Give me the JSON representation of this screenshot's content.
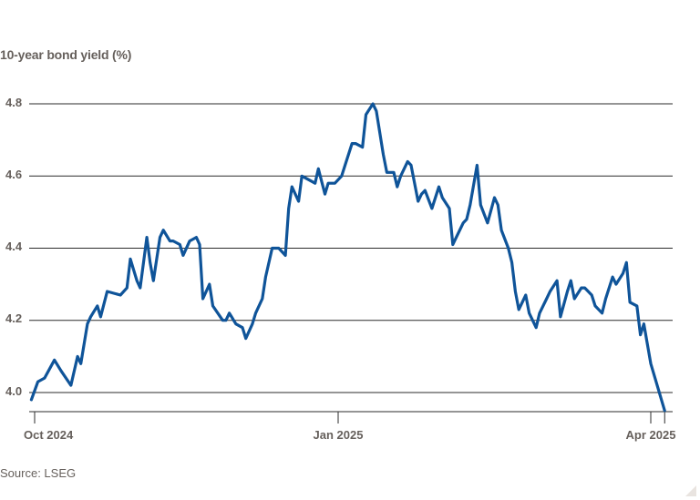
{
  "chart_data": {
    "type": "line",
    "title": "",
    "ylabel": "10-year bond yield (%)",
    "xlabel": "",
    "source": "Source: LSEG",
    "ylim": [
      3.946,
      4.81
    ],
    "yticks": [
      "4.8",
      "4.6",
      "4.4",
      "4.2",
      "4.0"
    ],
    "ytick_values": [
      4.8,
      4.6,
      4.4,
      4.2,
      4.0
    ],
    "xticks": [
      "Oct 2024",
      "Jan 2025",
      "Apr 2025"
    ],
    "xtick_dates": [
      "2024-10-01",
      "2025-01-01",
      "2025-04-01"
    ],
    "grid": true,
    "legend": null,
    "series": [
      {
        "name": "10-year bond yield",
        "color": "#0f5499",
        "points": [
          [
            "2024-09-30",
            3.98
          ],
          [
            "2024-10-02",
            4.03
          ],
          [
            "2024-10-04",
            4.04
          ],
          [
            "2024-10-07",
            4.09
          ],
          [
            "2024-10-09",
            4.06
          ],
          [
            "2024-10-12",
            4.02
          ],
          [
            "2024-10-14",
            4.1
          ],
          [
            "2024-10-15",
            4.08
          ],
          [
            "2024-10-17",
            4.19
          ],
          [
            "2024-10-18",
            4.21
          ],
          [
            "2024-10-20",
            4.24
          ],
          [
            "2024-10-21",
            4.21
          ],
          [
            "2024-10-23",
            4.28
          ],
          [
            "2024-10-27",
            4.27
          ],
          [
            "2024-10-29",
            4.29
          ],
          [
            "2024-10-30",
            4.37
          ],
          [
            "2024-11-01",
            4.31
          ],
          [
            "2024-11-02",
            4.29
          ],
          [
            "2024-11-04",
            4.43
          ],
          [
            "2024-11-05",
            4.36
          ],
          [
            "2024-11-06",
            4.31
          ],
          [
            "2024-11-08",
            4.43
          ],
          [
            "2024-11-09",
            4.45
          ],
          [
            "2024-11-11",
            4.42
          ],
          [
            "2024-11-12",
            4.42
          ],
          [
            "2024-11-14",
            4.41
          ],
          [
            "2024-11-15",
            4.38
          ],
          [
            "2024-11-17",
            4.42
          ],
          [
            "2024-11-19",
            4.43
          ],
          [
            "2024-11-20",
            4.41
          ],
          [
            "2024-11-21",
            4.26
          ],
          [
            "2024-11-23",
            4.3
          ],
          [
            "2024-11-24",
            4.24
          ],
          [
            "2024-11-27",
            4.2
          ],
          [
            "2024-11-28",
            4.2
          ],
          [
            "2024-11-29",
            4.22
          ],
          [
            "2024-12-01",
            4.19
          ],
          [
            "2024-12-03",
            4.18
          ],
          [
            "2024-12-04",
            4.15
          ],
          [
            "2024-12-06",
            4.19
          ],
          [
            "2024-12-07",
            4.22
          ],
          [
            "2024-12-09",
            4.26
          ],
          [
            "2024-12-10",
            4.32
          ],
          [
            "2024-12-12",
            4.4
          ],
          [
            "2024-12-14",
            4.4
          ],
          [
            "2024-12-16",
            4.38
          ],
          [
            "2024-12-17",
            4.51
          ],
          [
            "2024-12-18",
            4.57
          ],
          [
            "2024-12-20",
            4.53
          ],
          [
            "2024-12-21",
            4.6
          ],
          [
            "2024-12-23",
            4.59
          ],
          [
            "2024-12-25",
            4.58
          ],
          [
            "2024-12-26",
            4.62
          ],
          [
            "2024-12-28",
            4.55
          ],
          [
            "2024-12-29",
            4.58
          ],
          [
            "2024-12-31",
            4.58
          ],
          [
            "2025-01-02",
            4.6
          ],
          [
            "2025-01-03",
            4.63
          ],
          [
            "2025-01-05",
            4.69
          ],
          [
            "2025-01-06",
            4.69
          ],
          [
            "2025-01-08",
            4.68
          ],
          [
            "2025-01-09",
            4.77
          ],
          [
            "2025-01-11",
            4.8
          ],
          [
            "2025-01-12",
            4.78
          ],
          [
            "2025-01-14",
            4.66
          ],
          [
            "2025-01-15",
            4.61
          ],
          [
            "2025-01-17",
            4.61
          ],
          [
            "2025-01-18",
            4.57
          ],
          [
            "2025-01-19",
            4.6
          ],
          [
            "2025-01-21",
            4.64
          ],
          [
            "2025-01-22",
            4.63
          ],
          [
            "2025-01-24",
            4.53
          ],
          [
            "2025-01-25",
            4.55
          ],
          [
            "2025-01-26",
            4.56
          ],
          [
            "2025-01-28",
            4.51
          ],
          [
            "2025-01-30",
            4.57
          ],
          [
            "2025-01-31",
            4.54
          ],
          [
            "2025-02-02",
            4.51
          ],
          [
            "2025-02-03",
            4.41
          ],
          [
            "2025-02-04",
            4.43
          ],
          [
            "2025-02-06",
            4.47
          ],
          [
            "2025-02-07",
            4.48
          ],
          [
            "2025-02-08",
            4.52
          ],
          [
            "2025-02-10",
            4.63
          ],
          [
            "2025-02-11",
            4.52
          ],
          [
            "2025-02-13",
            4.47
          ],
          [
            "2025-02-15",
            4.54
          ],
          [
            "2025-02-16",
            4.52
          ],
          [
            "2025-02-17",
            4.45
          ],
          [
            "2025-02-19",
            4.4
          ],
          [
            "2025-02-20",
            4.36
          ],
          [
            "2025-02-21",
            4.28
          ],
          [
            "2025-02-22",
            4.23
          ],
          [
            "2025-02-24",
            4.27
          ],
          [
            "2025-02-25",
            4.22
          ],
          [
            "2025-02-27",
            4.18
          ],
          [
            "2025-02-28",
            4.22
          ],
          [
            "2025-03-02",
            4.26
          ],
          [
            "2025-03-03",
            4.28
          ],
          [
            "2025-03-05",
            4.31
          ],
          [
            "2025-03-06",
            4.21
          ],
          [
            "2025-03-08",
            4.28
          ],
          [
            "2025-03-09",
            4.31
          ],
          [
            "2025-03-10",
            4.26
          ],
          [
            "2025-03-12",
            4.29
          ],
          [
            "2025-03-13",
            4.29
          ],
          [
            "2025-03-15",
            4.27
          ],
          [
            "2025-03-16",
            4.24
          ],
          [
            "2025-03-18",
            4.22
          ],
          [
            "2025-03-19",
            4.26
          ],
          [
            "2025-03-21",
            4.32
          ],
          [
            "2025-03-22",
            4.3
          ],
          [
            "2025-03-24",
            4.33
          ],
          [
            "2025-03-25",
            4.36
          ],
          [
            "2025-03-26",
            4.25
          ],
          [
            "2025-03-28",
            4.24
          ],
          [
            "2025-03-29",
            4.16
          ],
          [
            "2025-03-30",
            4.19
          ],
          [
            "2025-04-01",
            4.08
          ],
          [
            "2025-04-05",
            3.95
          ]
        ]
      }
    ]
  },
  "styles": {
    "line_color": "#0f5499",
    "grid_color": "#e9e4e0",
    "axis_color": "#66605c",
    "text_color": "#66605c"
  }
}
